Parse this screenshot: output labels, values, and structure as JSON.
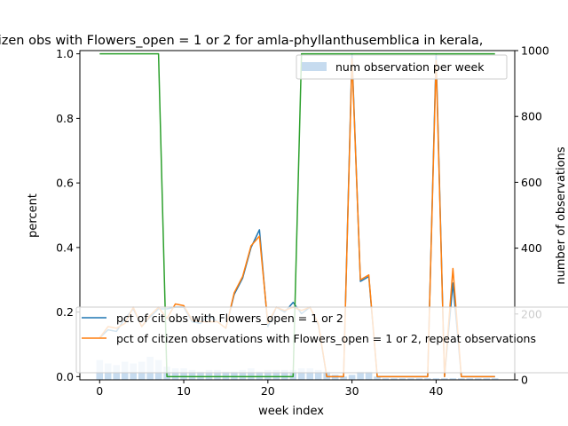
{
  "chart_data": {
    "type": "line",
    "title": "itizen obs with Flowers_open = 1 or 2 for amla-phyllanthusemblica in kerala,",
    "xlabel": "week index",
    "ylabel": "percent",
    "y2label": "number of observations",
    "xlim": [
      -2.35,
      49.35
    ],
    "ylim": [
      -0.01,
      1.01
    ],
    "y2lim": [
      0,
      1000
    ],
    "xticks": [
      0,
      10,
      20,
      30,
      40
    ],
    "yticks": [
      0.0,
      0.2,
      0.4,
      0.6,
      0.8,
      1.0
    ],
    "yticklabels": [
      "0.0",
      "0.2",
      "0.4",
      "0.6",
      "0.8",
      "1.0"
    ],
    "y2ticks": [
      0,
      200,
      400,
      600,
      800,
      1000
    ],
    "bar_series": {
      "name": "num observation per week",
      "color": "#c6dbef",
      "x": [
        0,
        1,
        2,
        3,
        4,
        5,
        6,
        7,
        8,
        9,
        10,
        11,
        12,
        13,
        14,
        15,
        16,
        17,
        18,
        19,
        20,
        21,
        22,
        23,
        24,
        25,
        26,
        27,
        28,
        29,
        30,
        31,
        32,
        33,
        34,
        35,
        36,
        37,
        38,
        39,
        40,
        41,
        42,
        43,
        44,
        45,
        46,
        47
      ],
      "values": [
        60,
        50,
        45,
        55,
        50,
        55,
        70,
        60,
        40,
        35,
        35,
        30,
        25,
        30,
        30,
        25,
        25,
        30,
        35,
        25,
        30,
        30,
        30,
        30,
        35,
        35,
        30,
        25,
        15,
        10,
        15,
        25,
        25,
        10,
        5,
        5,
        5,
        5,
        5,
        5,
        5,
        5,
        5,
        5,
        5,
        5,
        5,
        5
      ]
    },
    "series": [
      {
        "name": "pct of cit obs with Flowers_open = 1 or 2",
        "color": "#1f77b4",
        "x": [
          0,
          1,
          2,
          3,
          4,
          5,
          6,
          7,
          8,
          9,
          10,
          11,
          12,
          13,
          14,
          15,
          16,
          17,
          18,
          19,
          20,
          21,
          22,
          23,
          24,
          25,
          26,
          27,
          28,
          29,
          30,
          31,
          32,
          33,
          34,
          35,
          36,
          37,
          38,
          39,
          40,
          41,
          42,
          43,
          44,
          45,
          46,
          47
        ],
        "values": [
          0.12,
          0.145,
          0.14,
          0.18,
          0.21,
          0.155,
          0.185,
          0.21,
          0.21,
          0.215,
          0.215,
          0.17,
          0.165,
          0.19,
          0.17,
          0.15,
          0.255,
          0.305,
          0.4,
          0.455,
          0.155,
          0.215,
          0.2,
          0.23,
          0.195,
          0.215,
          0.16,
          0.0,
          0.0,
          0.0,
          1.0,
          0.295,
          0.31,
          0.0,
          0.0,
          0.0,
          0.0,
          0.0,
          0.0,
          0.0,
          1.0,
          0.0,
          0.29,
          0.0,
          0.0,
          0.0,
          0.0,
          0.0
        ]
      },
      {
        "name": "pct of citizen observations with Flowers_open = 1 or 2, repeat observations",
        "color": "#ff7f0e",
        "x": [
          0,
          1,
          2,
          3,
          4,
          5,
          6,
          7,
          8,
          9,
          10,
          11,
          12,
          13,
          14,
          15,
          16,
          17,
          18,
          19,
          20,
          21,
          22,
          23,
          24,
          25,
          26,
          27,
          28,
          29,
          30,
          31,
          32,
          33,
          34,
          35,
          36,
          37,
          38,
          39,
          40,
          41,
          42,
          43,
          44,
          45,
          46,
          47
        ],
        "values": [
          0.12,
          0.155,
          0.15,
          0.165,
          0.215,
          0.155,
          0.19,
          0.215,
          0.18,
          0.225,
          0.22,
          0.175,
          0.17,
          0.17,
          0.17,
          0.15,
          0.26,
          0.31,
          0.405,
          0.435,
          0.165,
          0.215,
          0.205,
          0.215,
          0.205,
          0.215,
          0.165,
          0.0,
          0.0,
          0.0,
          0.985,
          0.3,
          0.315,
          0.0,
          0.0,
          0.0,
          0.0,
          0.0,
          0.0,
          0.0,
          0.98,
          0.0,
          0.335,
          0.0,
          0.0,
          0.0,
          0.0,
          0.0
        ]
      },
      {
        "name": "",
        "color": "#2ca02c",
        "x": [
          0,
          7,
          8,
          23,
          24,
          47
        ],
        "values": [
          1.0,
          1.0,
          0.0,
          0.0,
          1.0,
          1.0
        ]
      }
    ],
    "legend_placement": "lower-left"
  }
}
